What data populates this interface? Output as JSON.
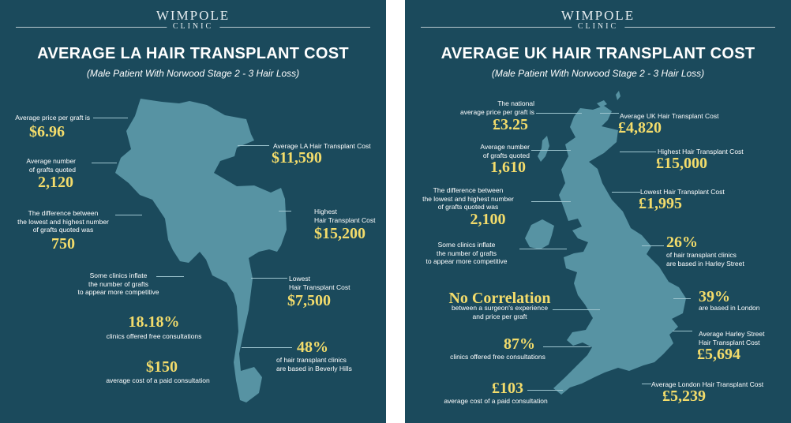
{
  "brand": {
    "name": "WIMPOLE",
    "sub": "CLINIC"
  },
  "colors": {
    "background": "#1b4a5c",
    "map": "#5793a3",
    "accent": "#f3dc6b",
    "text": "#ffffff"
  },
  "la": {
    "title": "AVERAGE LA HAIR TRANSPLANT COST",
    "subtitle": "(Male Patient With Norwood Stage 2 - 3 Hair Loss)",
    "price_per_graft": {
      "label": "Average price per graft is",
      "value": "$6.96"
    },
    "avg_grafts": {
      "label": "Average number\nof grafts quoted",
      "value": "2,120"
    },
    "graft_difference": {
      "label": "The difference between\nthe lowest and highest number\nof grafts quoted was",
      "value": "750"
    },
    "inflate": {
      "label": "Some clinics inflate\nthe number of grafts\nto appear more competitive"
    },
    "free_consult": {
      "value": "18.18%",
      "label": "clinics offered free consultations"
    },
    "paid_consult": {
      "value": "$150",
      "label": "average cost of a paid consultation"
    },
    "average_cost": {
      "label": "Average LA Hair Transplant Cost",
      "value": "$11,590"
    },
    "highest_cost": {
      "label": "Highest\nHair Transplant Cost",
      "value": "$15,200"
    },
    "lowest_cost": {
      "label": "Lowest\nHair Transplant Cost",
      "value": "$7,500"
    },
    "beverly_hills": {
      "value": "48%",
      "label": "of hair transplant clinics\nare based in Beverly Hills"
    }
  },
  "uk": {
    "title": "AVERAGE UK HAIR TRANSPLANT COST",
    "subtitle": "(Male Patient With Norwood Stage 2 - 3 Hair Loss)",
    "price_per_graft": {
      "label": "The national\naverage price per graft is",
      "value": "£3.25"
    },
    "avg_grafts": {
      "label": "Average number\nof grafts quoted",
      "value": "1,610"
    },
    "graft_difference": {
      "label": "The difference between\nthe lowest and highest number\nof grafts quoted was",
      "value": "2,100"
    },
    "inflate": {
      "label": "Some clinics inflate\nthe number of grafts\nto appear more competitive"
    },
    "correlation": {
      "value": "No Correlation",
      "label": "between a surgeon's experience\nand price per graft"
    },
    "free_consult": {
      "value": "87%",
      "label": "clinics offered free consultations"
    },
    "paid_consult": {
      "value": "£103",
      "label": "average cost of a paid consultation"
    },
    "average_cost": {
      "label": "Average UK Hair Transplant Cost",
      "value": "£4,820"
    },
    "highest_cost": {
      "label": "Highest Hair Transplant Cost",
      "value": "£15,000"
    },
    "lowest_cost": {
      "label": "Lowest Hair Transplant Cost",
      "value": "£1,995"
    },
    "harley_street": {
      "value": "26%",
      "label": "of hair transplant clinics\nare based in Harley Street"
    },
    "london": {
      "value": "39%",
      "label": "are based in London"
    },
    "harley_avg": {
      "label": "Average Harley Street\nHair Transplant Cost",
      "value": "£5,694"
    },
    "london_avg": {
      "label": "Average London Hair Transplant Cost",
      "value": "£5,239"
    }
  }
}
